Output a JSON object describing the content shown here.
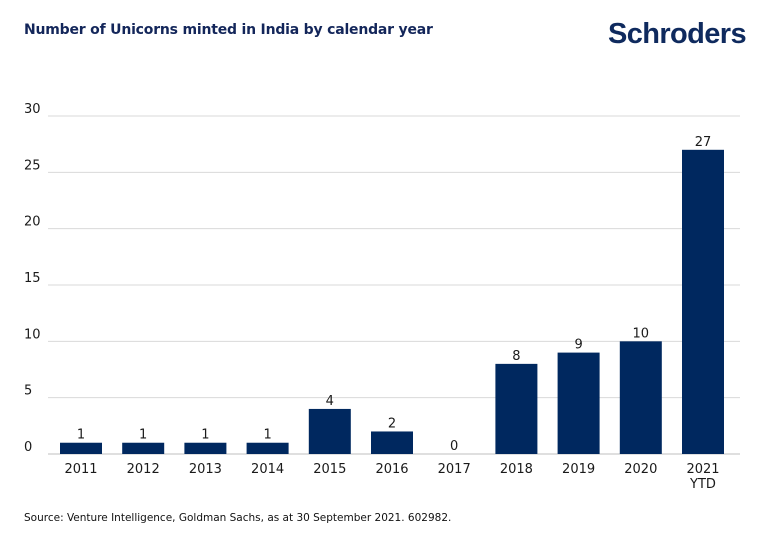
{
  "header": {
    "title": "Number of Unicorns minted in India by calendar year",
    "brand": "Schroders"
  },
  "footer": {
    "source": "Source: Venture Intelligence, Goldman Sachs, as at 30 September 2021. 602982."
  },
  "colors": {
    "bar": "#00285f",
    "title": "#13265a",
    "grid": "#d9d9d9"
  },
  "chart_data": {
    "type": "bar",
    "title": "Number of Unicorns minted in India by calendar year",
    "categories": [
      "2011",
      "2012",
      "2013",
      "2014",
      "2015",
      "2016",
      "2017",
      "2018",
      "2019",
      "2020",
      "2021\nYTD"
    ],
    "values": [
      1,
      1,
      1,
      1,
      4,
      2,
      0,
      8,
      9,
      10,
      27
    ],
    "xlabel": "",
    "ylabel": "",
    "ylim": [
      0,
      30
    ],
    "yticks": [
      0,
      5,
      10,
      15,
      20,
      25,
      30
    ],
    "grid": true,
    "legend": "none",
    "data_labels": true
  }
}
